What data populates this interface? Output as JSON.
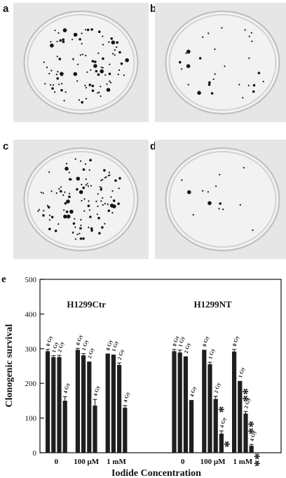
{
  "figure": {
    "panels": [
      {
        "id": "a",
        "label": "a"
      },
      {
        "id": "b",
        "label": "b"
      },
      {
        "id": "c",
        "label": "c"
      },
      {
        "id": "d",
        "label": "d"
      }
    ],
    "chart_panel_label": "e"
  },
  "chart_data": {
    "type": "bar",
    "ylabel": "Clonogenic survival",
    "xlabel": "Iodide Concentration",
    "ylim": [
      0,
      500
    ],
    "yticks": [
      0,
      100,
      200,
      300,
      400,
      500
    ],
    "groups": [
      {
        "name": "H1299Ctr",
        "concentrations": [
          {
            "label": "0",
            "doses": [
              "0 Gy",
              "1 Gy",
              "2 Gy",
              "4 Gy"
            ],
            "values": [
              293,
              276,
              276,
              150
            ],
            "errors": [
              5,
              4,
              5,
              12
            ],
            "significance": [
              "",
              "",
              "",
              ""
            ]
          },
          {
            "label": "100 μM",
            "doses": [
              "0 Gy",
              "1 Gy",
              "2 Gy",
              "4 Gy"
            ],
            "values": [
              297,
              281,
              263,
              136
            ],
            "errors": [
              4,
              5,
              0,
              18
            ],
            "significance": [
              "",
              "",
              "",
              ""
            ]
          },
          {
            "label": "1 mM",
            "doses": [
              "0 Gy",
              "1 Gy",
              "2 Gy",
              "4 Gy"
            ],
            "values": [
              286,
              283,
              253,
              130
            ],
            "errors": [
              0,
              0,
              6,
              6
            ],
            "significance": [
              "",
              "",
              "",
              ""
            ]
          }
        ]
      },
      {
        "name": "H1299NT",
        "concentrations": [
          {
            "label": "0",
            "doses": [
              "0 Gy",
              "1 Gy",
              "2 Gy",
              "4 Gy"
            ],
            "values": [
              293,
              289,
              278,
              152
            ],
            "errors": [
              5,
              7,
              0,
              0
            ],
            "significance": [
              "",
              "",
              "",
              ""
            ]
          },
          {
            "label": "100 μM",
            "doses": [
              "0 Gy",
              "1 Gy",
              "2 Gy",
              "4 Gy"
            ],
            "values": [
              297,
              255,
              155,
              55
            ],
            "errors": [
              0,
              6,
              8,
              8
            ],
            "significance": [
              "",
              "",
              "*",
              "*"
            ]
          },
          {
            "label": "1 mM",
            "doses": [
              "0 Gy",
              "1 Gy",
              "2 Gy",
              "4 Gy"
            ],
            "values": [
              292,
              207,
              113,
              20
            ],
            "errors": [
              6,
              0,
              6,
              4
            ],
            "significance": [
              "",
              "**",
              "**",
              "**"
            ]
          }
        ]
      }
    ]
  }
}
